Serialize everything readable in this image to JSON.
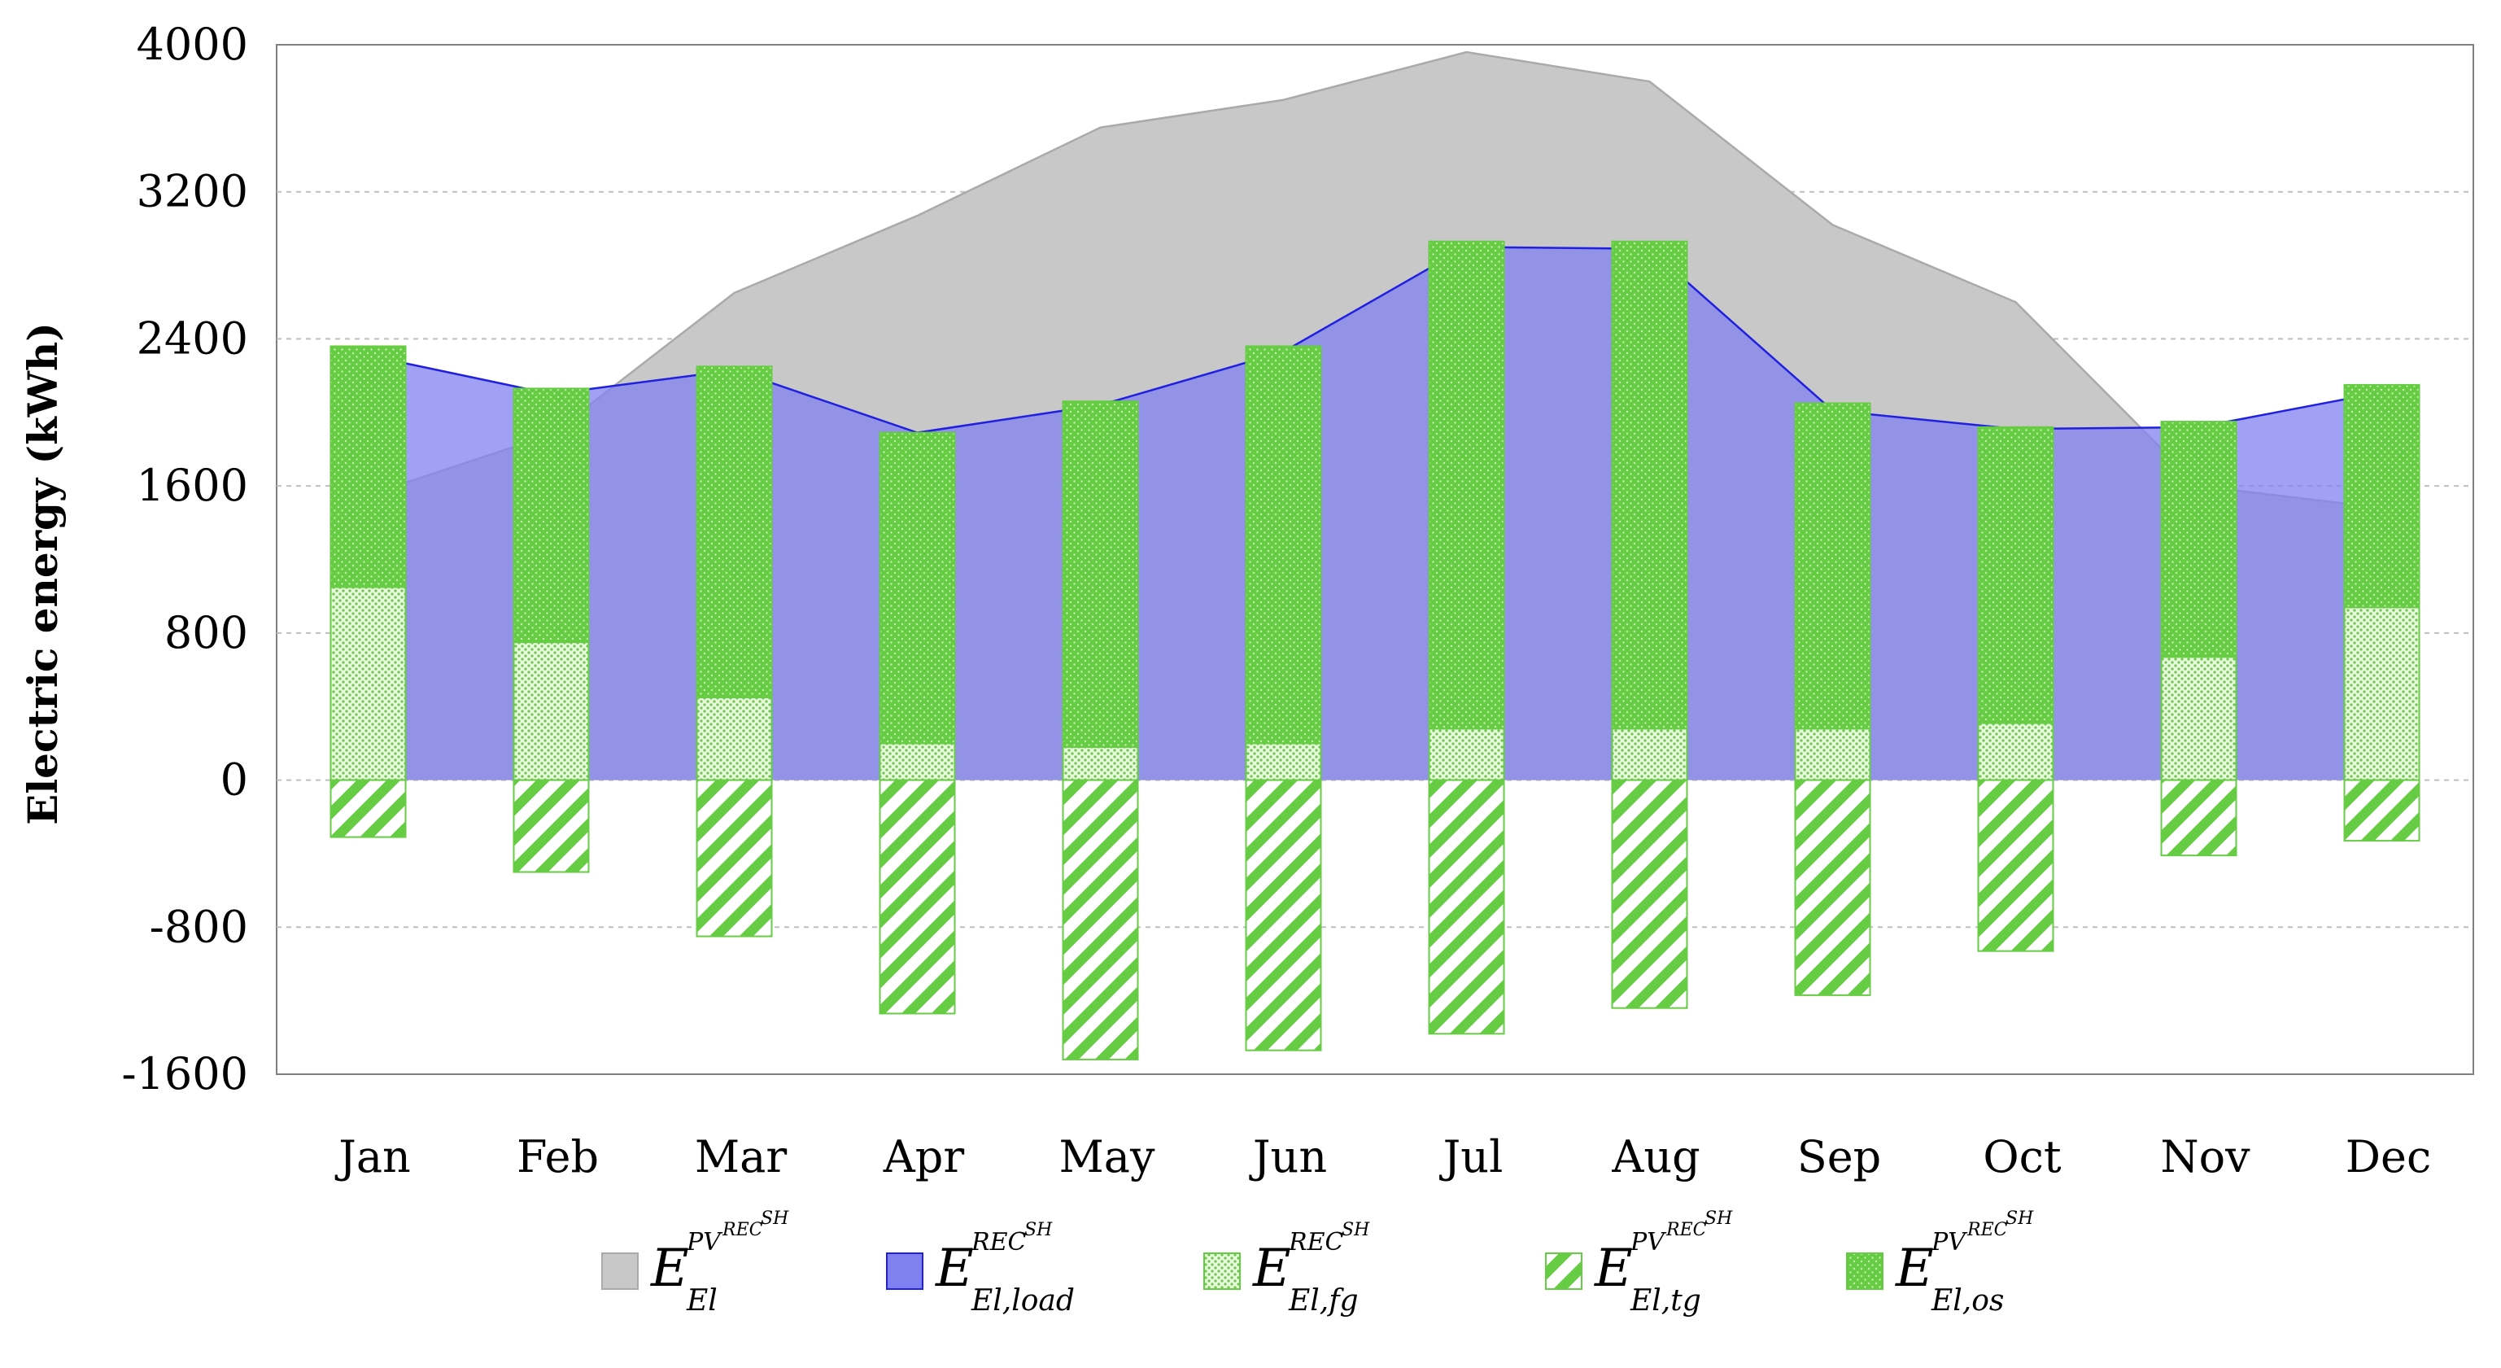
{
  "chart_data": {
    "type": "bar",
    "title": "",
    "xlabel": "",
    "ylabel": "Electric energy (kWh)",
    "ylim": [
      -1600,
      4000
    ],
    "yticks": [
      -1600,
      -800,
      0,
      800,
      1600,
      2400,
      3200,
      4000
    ],
    "grid": true,
    "legend_position": "bottom",
    "categories": [
      "Jan",
      "Feb",
      "Mar",
      "Apr",
      "May",
      "Jun",
      "Jul",
      "Aug",
      "Sep",
      "Oct",
      "Nov",
      "Dec"
    ],
    "series": [
      {
        "name": "E_El^{PV^{REC^SH}}",
        "kind": "area",
        "color": "#c8c8c8",
        "values": [
          1550,
          1880,
          2650,
          3070,
          3550,
          3700,
          3960,
          3800,
          3020,
          2600,
          1600,
          1480
        ]
      },
      {
        "name": "E_El,load^{REC^SH}",
        "kind": "area",
        "color": "#8080f0",
        "values": [
          2310,
          2100,
          2230,
          1890,
          2040,
          2330,
          2900,
          2890,
          2010,
          1910,
          1920,
          2110
        ]
      },
      {
        "name": "E_El,fg^{REC^SH}",
        "kind": "bar",
        "pattern": "dots",
        "color": "#66cc44",
        "values": [
          1050,
          750,
          450,
          200,
          180,
          200,
          280,
          280,
          280,
          310,
          670,
          940
        ]
      },
      {
        "name": "E_El,tg^{PV^{REC^SH}}",
        "kind": "bar",
        "pattern": "diagonal",
        "color": "#66cc44",
        "values": [
          -310,
          -500,
          -850,
          -1270,
          -1520,
          -1470,
          -1380,
          -1240,
          -1170,
          -930,
          -410,
          -330
        ]
      },
      {
        "name": "E_El,os^{PV^{REC^SH}}",
        "kind": "bar",
        "pattern": "solid-dots",
        "color": "#66cc44",
        "values": [
          1310,
          1380,
          1800,
          1690,
          1880,
          2160,
          2650,
          2650,
          1770,
          1610,
          1280,
          1210
        ]
      }
    ],
    "legend": [
      {
        "base": "E",
        "sub": "El",
        "sup": "PV",
        "supsup": "REC",
        "supsupsup": "SH",
        "swatch": "gray-area"
      },
      {
        "base": "E",
        "sub": "El,load",
        "sup": "REC",
        "supsup": "SH",
        "supsupsup": "",
        "swatch": "blue-area"
      },
      {
        "base": "E",
        "sub": "El,fg",
        "sup": "REC",
        "supsup": "SH",
        "supsupsup": "",
        "swatch": "dots"
      },
      {
        "base": "E",
        "sub": "El,tg",
        "sup": "PV",
        "supsup": "REC",
        "supsupsup": "SH",
        "swatch": "diagonal"
      },
      {
        "base": "E",
        "sub": "El,os",
        "sup": "PV",
        "supsup": "REC",
        "supsupsup": "SH",
        "swatch": "solid-dots"
      }
    ]
  },
  "colors": {
    "pv_area": "#c8c8c8",
    "pv_line": "#aaaaaa",
    "load_area": "#8080f0",
    "load_line": "#2020e0",
    "green": "#66cc44",
    "green_light": "#d8f0c8",
    "grid": "#bfbfbf",
    "axis": "#7f7f7f"
  }
}
